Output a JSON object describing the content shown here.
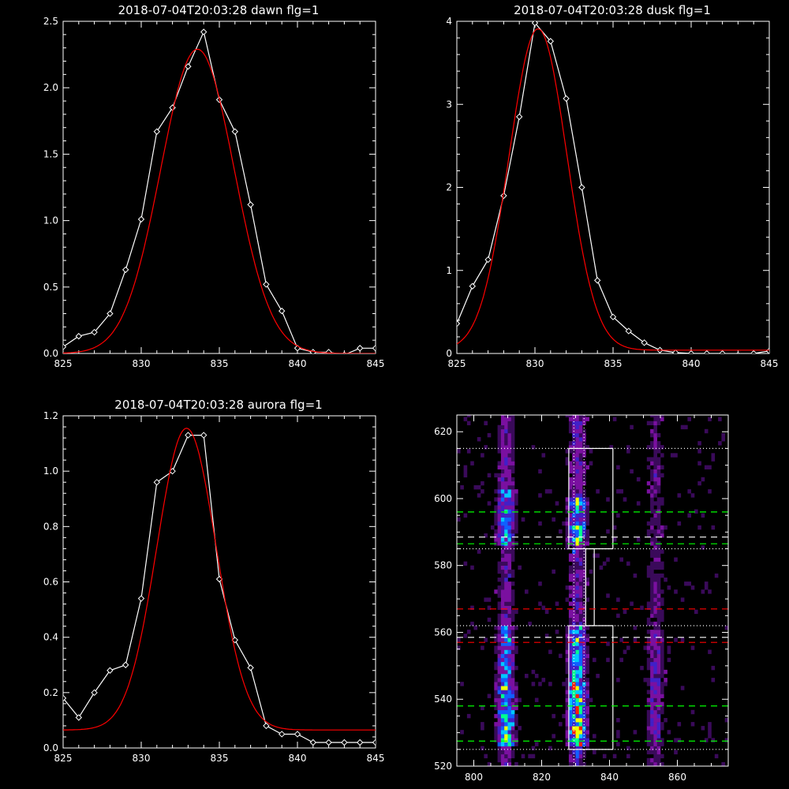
{
  "chart_data": [
    {
      "type": "line",
      "title": "2018-07-04T20:03:28 dawn flg=1",
      "xlabel": "",
      "ylabel": "",
      "xlim": [
        825,
        845
      ],
      "ylim": [
        0,
        2.5
      ],
      "xticks": [
        825,
        830,
        835,
        840,
        845
      ],
      "yticks": [
        0.0,
        0.5,
        1.0,
        1.5,
        2.0,
        2.5
      ],
      "ytick_labels": [
        "0.0",
        "0.5",
        "1.0",
        "1.5",
        "2.0",
        "2.5"
      ],
      "series": [
        {
          "color": "#ffffff",
          "marker": "diamond",
          "x": [
            825,
            826,
            827,
            828,
            829,
            830,
            831,
            832,
            833,
            834,
            835,
            836,
            837,
            838,
            839,
            840,
            841,
            842,
            843,
            844,
            845
          ],
          "y": [
            0.05,
            0.13,
            0.16,
            0.3,
            0.63,
            1.01,
            1.67,
            1.85,
            2.16,
            2.42,
            1.91,
            1.67,
            1.12,
            0.52,
            0.32,
            0.04,
            0.01,
            0.01,
            -0.01,
            0.04,
            0.04
          ]
        },
        {
          "color": "#ff0000",
          "kind": "gaussian-fit",
          "amp": 2.29,
          "center": 833.6,
          "sigma": 2.35,
          "offset": 0.0
        }
      ]
    },
    {
      "type": "line",
      "title": "2018-07-04T20:03:28 dusk flg=1",
      "xlabel": "",
      "ylabel": "",
      "xlim": [
        825,
        845
      ],
      "ylim": [
        0,
        4
      ],
      "xticks": [
        825,
        830,
        835,
        840,
        845
      ],
      "yticks": [
        0,
        1,
        2,
        3,
        4
      ],
      "ytick_labels": [
        "0",
        "1",
        "2",
        "3",
        "4"
      ],
      "series": [
        {
          "color": "#ffffff",
          "marker": "diamond",
          "x": [
            825,
            826,
            827,
            828,
            829,
            830,
            831,
            832,
            833,
            834,
            835,
            836,
            837,
            838,
            839,
            840,
            841,
            842,
            843,
            844,
            845
          ],
          "y": [
            0.36,
            0.81,
            1.13,
            1.9,
            2.85,
            3.98,
            3.76,
            3.07,
            2.0,
            0.88,
            0.44,
            0.27,
            0.13,
            0.04,
            0.01,
            0.0,
            0.0,
            0.0,
            -0.02,
            0.0,
            0.03
          ]
        },
        {
          "color": "#ff0000",
          "kind": "gaussian-fit",
          "amp": 3.87,
          "center": 830.2,
          "sigma": 1.85,
          "offset": 0.04
        }
      ]
    },
    {
      "type": "line",
      "title": "2018-07-04T20:03:28 aurora flg=1",
      "xlabel": "",
      "ylabel": "",
      "xlim": [
        825,
        845
      ],
      "ylim": [
        0,
        1.2
      ],
      "xticks": [
        825,
        830,
        835,
        840,
        845
      ],
      "yticks": [
        0.0,
        0.2,
        0.4,
        0.6,
        0.8,
        1.0,
        1.2
      ],
      "ytick_labels": [
        "0.0",
        "0.2",
        "0.4",
        "0.6",
        "0.8",
        "1.0",
        "1.2"
      ],
      "series": [
        {
          "color": "#ffffff",
          "marker": "diamond",
          "x": [
            825,
            826,
            827,
            828,
            829,
            830,
            831,
            832,
            833,
            834,
            835,
            836,
            837,
            838,
            839,
            840,
            841,
            842,
            843,
            844,
            845
          ],
          "y": [
            0.18,
            0.11,
            0.2,
            0.28,
            0.3,
            0.54,
            0.96,
            1.0,
            1.13,
            1.13,
            0.61,
            0.39,
            0.29,
            0.08,
            0.05,
            0.05,
            0.02,
            0.02,
            0.02,
            0.02,
            0.02
          ]
        },
        {
          "color": "#ff0000",
          "kind": "gaussian-fit",
          "amp": 1.09,
          "center": 832.9,
          "sigma": 1.9,
          "offset": 0.065
        }
      ]
    },
    {
      "type": "heatmap",
      "title": "",
      "xlabel": "",
      "ylabel": "",
      "xlim": [
        795,
        875
      ],
      "ylim": [
        520,
        625
      ],
      "xticks": [
        800,
        820,
        840,
        860
      ],
      "yticks": [
        520,
        540,
        560,
        580,
        600,
        620
      ],
      "colormap": [
        "#000000",
        "#3a0a5a",
        "#7a10a0",
        "#4020c8",
        "#1060ff",
        "#00c8ff",
        "#00ff90",
        "#f0ff00",
        "#ff2000"
      ],
      "emission_columns": [
        {
          "x": 809,
          "label_region": "bright strip"
        },
        {
          "x": 830,
          "label_region": "brightest strip"
        },
        {
          "x": 853,
          "label_region": "faint strip"
        }
      ],
      "overlays": [
        {
          "kind": "box",
          "color": "#ffffff",
          "x": [
            828,
            841
          ],
          "y": [
            585,
            615
          ]
        },
        {
          "kind": "box",
          "color": "#ffffff",
          "x": [
            828,
            841
          ],
          "y": [
            525,
            562
          ]
        },
        {
          "kind": "box",
          "color": "#ffffff",
          "x": [
            833,
            835.5
          ],
          "y": [
            562,
            585
          ]
        },
        {
          "kind": "vline",
          "style": "dotted",
          "color": "#ffffff",
          "x": 829.5
        },
        {
          "kind": "vline",
          "style": "dotted",
          "color": "#ffffff",
          "x": 832.5
        },
        {
          "kind": "hline",
          "style": "dotted",
          "color": "#ffffff",
          "y": 615
        },
        {
          "kind": "hline",
          "style": "dotted",
          "color": "#ffffff",
          "y": 585
        },
        {
          "kind": "hline",
          "style": "dotted",
          "color": "#ffffff",
          "y": 562
        },
        {
          "kind": "hline",
          "style": "dotted",
          "color": "#ffffff",
          "y": 525
        },
        {
          "kind": "hline",
          "style": "dashed",
          "color": "#00ff00",
          "y": 596
        },
        {
          "kind": "hline",
          "style": "dashed",
          "color": "#00ff00",
          "y": 586.5
        },
        {
          "kind": "hline",
          "style": "dashed",
          "color": "#ffffff",
          "y": 588.5
        },
        {
          "kind": "hline",
          "style": "dashed",
          "color": "#ff0000",
          "y": 567
        },
        {
          "kind": "hline",
          "style": "dashed",
          "color": "#ffffff",
          "y": 558.5
        },
        {
          "kind": "hline",
          "style": "dashed",
          "color": "#ff0000",
          "y": 557
        },
        {
          "kind": "hline",
          "style": "dashed",
          "color": "#00ff00",
          "y": 538
        },
        {
          "kind": "hline",
          "style": "dashed",
          "color": "#00ff00",
          "y": 527.5
        }
      ]
    }
  ]
}
